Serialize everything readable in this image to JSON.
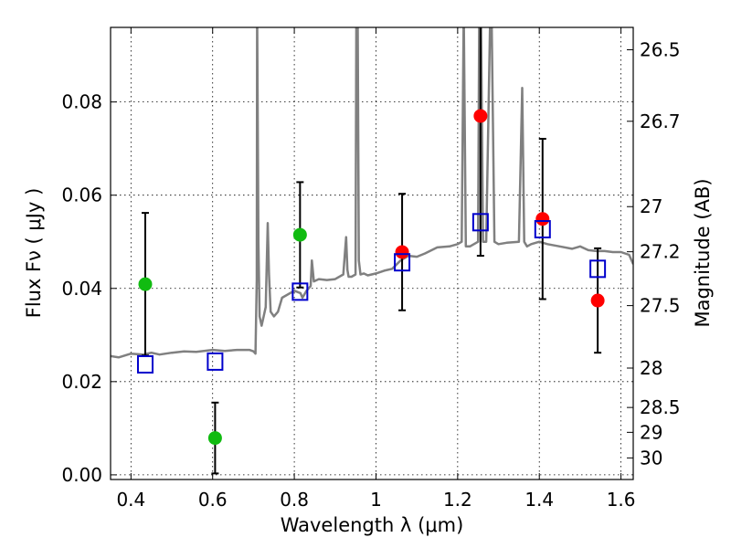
{
  "chart_data": {
    "type": "scatter",
    "xlabel": "Wavelength  λ (μm)",
    "ylabel": "Flux  Fν  ( μJy )",
    "y2label": "Magnitude (AB)",
    "xlim": [
      0.35,
      1.63
    ],
    "ylim": [
      -0.001,
      0.096
    ],
    "grid": true,
    "x_ticks": [
      0.4,
      0.6,
      0.8,
      1.0,
      1.2,
      1.4,
      1.6
    ],
    "x_tick_labels": [
      "0.4",
      "0.6",
      "0.8",
      "1",
      "1.2",
      "1.4",
      "1.6"
    ],
    "y_ticks": [
      0.0,
      0.02,
      0.04,
      0.06,
      0.08
    ],
    "y_tick_labels": [
      "0.00",
      "0.02",
      "0.04",
      "0.06",
      "0.08"
    ],
    "mag_ticks": [
      "26.5",
      "26.7",
      "27",
      "27.2",
      "27.5",
      "28",
      "28.5",
      "29",
      "30"
    ],
    "colors": {
      "green": "#11bb11",
      "red": "#ff0000",
      "model": "#0000cc",
      "spectrum": "#808080",
      "error": "#000000"
    },
    "series": [
      {
        "name": "green-photometry",
        "marker": "circle",
        "color": "#11bb11",
        "points": [
          {
            "x": 0.435,
            "y": 0.0409,
            "err": 0.0153
          },
          {
            "x": 0.606,
            "y": 0.0079,
            "err": 0.0076
          },
          {
            "x": 0.814,
            "y": 0.0515,
            "err": 0.0113
          }
        ]
      },
      {
        "name": "red-photometry",
        "marker": "circle",
        "color": "#ff0000",
        "points": [
          {
            "x": 1.064,
            "y": 0.0478,
            "err": 0.0125
          },
          {
            "x": 1.256,
            "y": 0.077,
            "err": 0.03
          },
          {
            "x": 1.408,
            "y": 0.0549,
            "err": 0.0172
          },
          {
            "x": 1.543,
            "y": 0.0374,
            "err": 0.0112
          }
        ]
      },
      {
        "name": "model-photometry",
        "marker": "open-square",
        "color": "#0000cc",
        "points": [
          {
            "x": 0.435,
            "y": 0.0237
          },
          {
            "x": 0.606,
            "y": 0.0243
          },
          {
            "x": 0.814,
            "y": 0.0393
          },
          {
            "x": 1.064,
            "y": 0.0456
          },
          {
            "x": 1.256,
            "y": 0.0542
          },
          {
            "x": 1.408,
            "y": 0.0527
          },
          {
            "x": 1.543,
            "y": 0.0442
          }
        ]
      }
    ],
    "spectrum": {
      "name": "model-spectrum",
      "color": "#808080",
      "x": [
        0.35,
        0.37,
        0.4,
        0.43,
        0.45,
        0.47,
        0.5,
        0.53,
        0.56,
        0.6,
        0.63,
        0.66,
        0.69,
        0.7,
        0.705,
        0.708,
        0.709,
        0.712,
        0.715,
        0.72,
        0.73,
        0.735,
        0.738,
        0.742,
        0.75,
        0.76,
        0.77,
        0.8,
        0.815,
        0.82,
        0.83,
        0.84,
        0.843,
        0.848,
        0.86,
        0.88,
        0.9,
        0.92,
        0.927,
        0.93,
        0.933,
        0.94,
        0.95,
        0.952,
        0.955,
        0.958,
        0.962,
        0.97,
        0.98,
        1.0,
        1.02,
        1.04,
        1.06,
        1.08,
        1.1,
        1.12,
        1.15,
        1.18,
        1.2,
        1.21,
        1.215,
        1.22,
        1.23,
        1.25,
        1.253,
        1.257,
        1.262,
        1.27,
        1.28,
        1.283,
        1.29,
        1.3,
        1.32,
        1.35,
        1.358,
        1.363,
        1.37,
        1.38,
        1.4,
        1.42,
        1.45,
        1.48,
        1.5,
        1.52,
        1.54,
        1.56,
        1.58,
        1.6,
        1.62,
        1.63
      ],
      "y": [
        0.0255,
        0.0252,
        0.026,
        0.0258,
        0.0262,
        0.0258,
        0.0262,
        0.0265,
        0.0264,
        0.0268,
        0.0266,
        0.0268,
        0.0268,
        0.0265,
        0.026,
        0.042,
        0.1,
        0.05,
        0.034,
        0.032,
        0.036,
        0.054,
        0.043,
        0.035,
        0.034,
        0.035,
        0.038,
        0.0395,
        0.039,
        0.038,
        0.0395,
        0.0405,
        0.046,
        0.0415,
        0.042,
        0.0418,
        0.042,
        0.043,
        0.051,
        0.044,
        0.0425,
        0.0425,
        0.043,
        0.1,
        0.1,
        0.046,
        0.043,
        0.0432,
        0.0428,
        0.0432,
        0.0438,
        0.0442,
        0.046,
        0.047,
        0.0468,
        0.0475,
        0.0488,
        0.049,
        0.0495,
        0.05,
        0.1,
        0.049,
        0.049,
        0.05,
        0.1,
        0.1,
        0.05,
        0.05,
        0.1,
        0.1,
        0.05,
        0.0495,
        0.0498,
        0.05,
        0.083,
        0.05,
        0.049,
        0.0495,
        0.05,
        0.0495,
        0.049,
        0.0485,
        0.049,
        0.0482,
        0.048,
        0.048,
        0.0478,
        0.0478,
        0.0472,
        0.0452
      ]
    }
  }
}
